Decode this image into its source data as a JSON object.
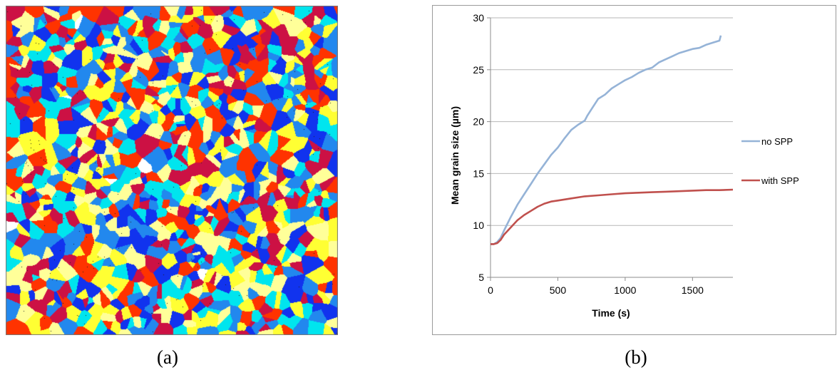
{
  "panel_a": {
    "caption": "(a)",
    "image": "grain-microstructure",
    "palette": [
      "#ff3300",
      "#1133ee",
      "#00e5ee",
      "#ffff33",
      "#cc1144",
      "#2288ee",
      "#ffff99",
      "#ffffff"
    ]
  },
  "panel_b": {
    "caption": "(b)"
  },
  "chart_data": {
    "type": "line",
    "title": "",
    "xlabel": "Time (s)",
    "ylabel": "Mean grain size (µm)",
    "xlim": [
      0,
      1800
    ],
    "ylim": [
      5,
      30
    ],
    "xticks": [
      0,
      500,
      1000,
      1500
    ],
    "yticks": [
      5,
      10,
      15,
      20,
      25,
      30
    ],
    "grid": "horizontal",
    "legend_position": "right",
    "series": [
      {
        "name": "no SPP",
        "color": "#95b3d7",
        "x": [
          0,
          25,
          50,
          75,
          100,
          150,
          200,
          250,
          300,
          350,
          400,
          450,
          500,
          550,
          600,
          650,
          700,
          720,
          750,
          800,
          850,
          900,
          950,
          1000,
          1050,
          1100,
          1150,
          1200,
          1250,
          1300,
          1350,
          1400,
          1450,
          1500,
          1550,
          1600,
          1650,
          1700,
          1710
        ],
        "y": [
          8.2,
          8.2,
          8.4,
          8.8,
          9.5,
          10.8,
          12.0,
          13.0,
          14.0,
          15.0,
          15.9,
          16.8,
          17.5,
          18.4,
          19.2,
          19.7,
          20.1,
          20.6,
          21.2,
          22.2,
          22.6,
          23.2,
          23.6,
          24.0,
          24.3,
          24.7,
          25.0,
          25.2,
          25.7,
          26.0,
          26.3,
          26.6,
          26.8,
          27.0,
          27.1,
          27.4,
          27.6,
          27.8,
          28.3
        ]
      },
      {
        "name": "with SPP",
        "color": "#c0504d",
        "x": [
          0,
          25,
          50,
          75,
          100,
          150,
          200,
          250,
          300,
          350,
          400,
          450,
          500,
          600,
          700,
          800,
          900,
          1000,
          1100,
          1200,
          1300,
          1400,
          1500,
          1600,
          1700,
          1800
        ],
        "y": [
          8.2,
          8.2,
          8.3,
          8.6,
          9.1,
          9.8,
          10.5,
          11.0,
          11.4,
          11.8,
          12.1,
          12.3,
          12.4,
          12.6,
          12.8,
          12.9,
          13.0,
          13.1,
          13.15,
          13.2,
          13.25,
          13.3,
          13.35,
          13.4,
          13.4,
          13.45
        ]
      }
    ]
  }
}
